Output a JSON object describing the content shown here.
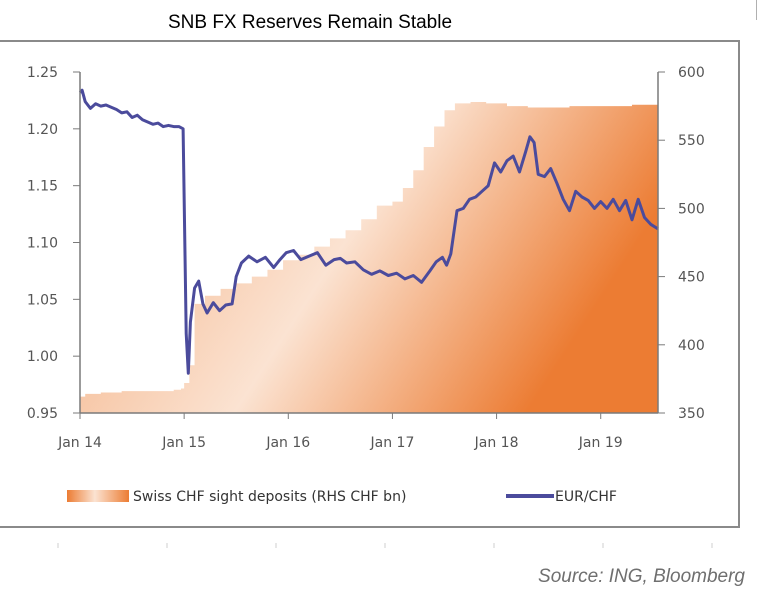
{
  "title": "SNB FX Reserves Remain Stable",
  "source": "Source: ING, Bloomberg",
  "colors": {
    "line": "#4b4b9c",
    "area_light": "#fbe3d2",
    "area_mid": "#f2a877",
    "area_dark": "#ec7c33",
    "axis": "#7a7a7a"
  },
  "chart_data": {
    "type": "line",
    "title": "SNB FX Reserves Remain Stable",
    "xlabel": "",
    "ylabel_left": "EUR/CHF",
    "ylabel_right": "Swiss CHF sight deposits (RHS CHF bn)",
    "x_range": [
      2014.0,
      2019.55
    ],
    "x_ticks": [
      {
        "label": "Jan 14",
        "value": 2014
      },
      {
        "label": "Jan 15",
        "value": 2015
      },
      {
        "label": "Jan 16",
        "value": 2016
      },
      {
        "label": "Jan 17",
        "value": 2017
      },
      {
        "label": "Jan 18",
        "value": 2018
      },
      {
        "label": "Jan 19",
        "value": 2019
      }
    ],
    "y_left": {
      "range": [
        0.95,
        1.25
      ],
      "ticks": [
        "0.95",
        "1.00",
        "1.05",
        "1.10",
        "1.15",
        "1.20",
        "1.25"
      ]
    },
    "y_right": {
      "range": [
        350,
        600
      ],
      "ticks": [
        "350",
        "400",
        "450",
        "500",
        "550",
        "600"
      ]
    },
    "grid": false,
    "legend_position": "bottom",
    "legend": [
      {
        "label": "Swiss CHF sight deposits (RHS CHF bn)",
        "kind": "area"
      },
      {
        "label": "EUR/CHF",
        "kind": "line"
      }
    ],
    "series": [
      {
        "name": "Swiss CHF sight deposits (RHS CHF bn)",
        "axis": "right",
        "type": "area",
        "x": [
          2014.0,
          2014.05,
          2014.2,
          2014.4,
          2014.6,
          2014.8,
          2014.9,
          2014.97,
          2015.0,
          2015.05,
          2015.1,
          2015.2,
          2015.35,
          2015.5,
          2015.65,
          2015.8,
          2015.95,
          2016.1,
          2016.25,
          2016.4,
          2016.55,
          2016.7,
          2016.85,
          2017.0,
          2017.1,
          2017.2,
          2017.3,
          2017.4,
          2017.5,
          2017.6,
          2017.75,
          2017.9,
          2018.1,
          2018.3,
          2018.5,
          2018.7,
          2018.9,
          2019.1,
          2019.3,
          2019.45,
          2019.55
        ],
        "values": [
          362,
          364,
          365,
          366,
          366,
          366,
          367,
          368,
          372,
          385,
          430,
          436,
          441,
          445,
          450,
          455,
          462,
          466,
          472,
          478,
          484,
          492,
          502,
          505,
          515,
          528,
          545,
          560,
          572,
          577,
          578,
          577,
          575,
          574,
          574,
          575,
          575,
          575,
          576,
          576,
          578
        ]
      },
      {
        "name": "EUR/CHF",
        "axis": "left",
        "type": "line",
        "x": [
          2014.0,
          2014.02,
          2014.05,
          2014.1,
          2014.15,
          2014.2,
          2014.25,
          2014.3,
          2014.35,
          2014.4,
          2014.45,
          2014.5,
          2014.55,
          2014.6,
          2014.65,
          2014.7,
          2014.75,
          2014.8,
          2014.85,
          2014.9,
          2014.95,
          2014.99,
          2015.02,
          2015.04,
          2015.06,
          2015.1,
          2015.14,
          2015.18,
          2015.22,
          2015.28,
          2015.34,
          2015.4,
          2015.46,
          2015.5,
          2015.55,
          2015.62,
          2015.7,
          2015.78,
          2015.86,
          2015.92,
          2015.98,
          2016.05,
          2016.12,
          2016.2,
          2016.28,
          2016.36,
          2016.44,
          2016.5,
          2016.56,
          2016.64,
          2016.72,
          2016.8,
          2016.88,
          2016.96,
          2017.04,
          2017.12,
          2017.2,
          2017.28,
          2017.36,
          2017.42,
          2017.48,
          2017.52,
          2017.56,
          2017.62,
          2017.68,
          2017.74,
          2017.8,
          2017.86,
          2017.92,
          2017.98,
          2018.04,
          2018.1,
          2018.16,
          2018.22,
          2018.28,
          2018.32,
          2018.36,
          2018.4,
          2018.46,
          2018.52,
          2018.58,
          2018.64,
          2018.7,
          2018.76,
          2018.82,
          2018.88,
          2018.94,
          2019.0,
          2019.06,
          2019.12,
          2019.18,
          2019.24,
          2019.3,
          2019.36,
          2019.42,
          2019.48,
          2019.55
        ],
        "values": [
          1.232,
          1.234,
          1.224,
          1.218,
          1.222,
          1.22,
          1.221,
          1.219,
          1.217,
          1.214,
          1.215,
          1.21,
          1.212,
          1.208,
          1.206,
          1.204,
          1.205,
          1.202,
          1.203,
          1.202,
          1.202,
          1.2,
          1.02,
          0.985,
          1.03,
          1.06,
          1.066,
          1.046,
          1.038,
          1.047,
          1.04,
          1.045,
          1.046,
          1.07,
          1.082,
          1.088,
          1.083,
          1.087,
          1.078,
          1.085,
          1.091,
          1.093,
          1.085,
          1.088,
          1.091,
          1.08,
          1.085,
          1.086,
          1.082,
          1.083,
          1.076,
          1.072,
          1.075,
          1.071,
          1.073,
          1.068,
          1.071,
          1.065,
          1.075,
          1.083,
          1.087,
          1.08,
          1.09,
          1.128,
          1.13,
          1.138,
          1.14,
          1.145,
          1.15,
          1.17,
          1.162,
          1.172,
          1.176,
          1.162,
          1.18,
          1.193,
          1.188,
          1.16,
          1.158,
          1.165,
          1.152,
          1.138,
          1.128,
          1.145,
          1.14,
          1.137,
          1.13,
          1.136,
          1.13,
          1.138,
          1.128,
          1.137,
          1.12,
          1.138,
          1.122,
          1.116,
          1.112
        ]
      }
    ]
  }
}
